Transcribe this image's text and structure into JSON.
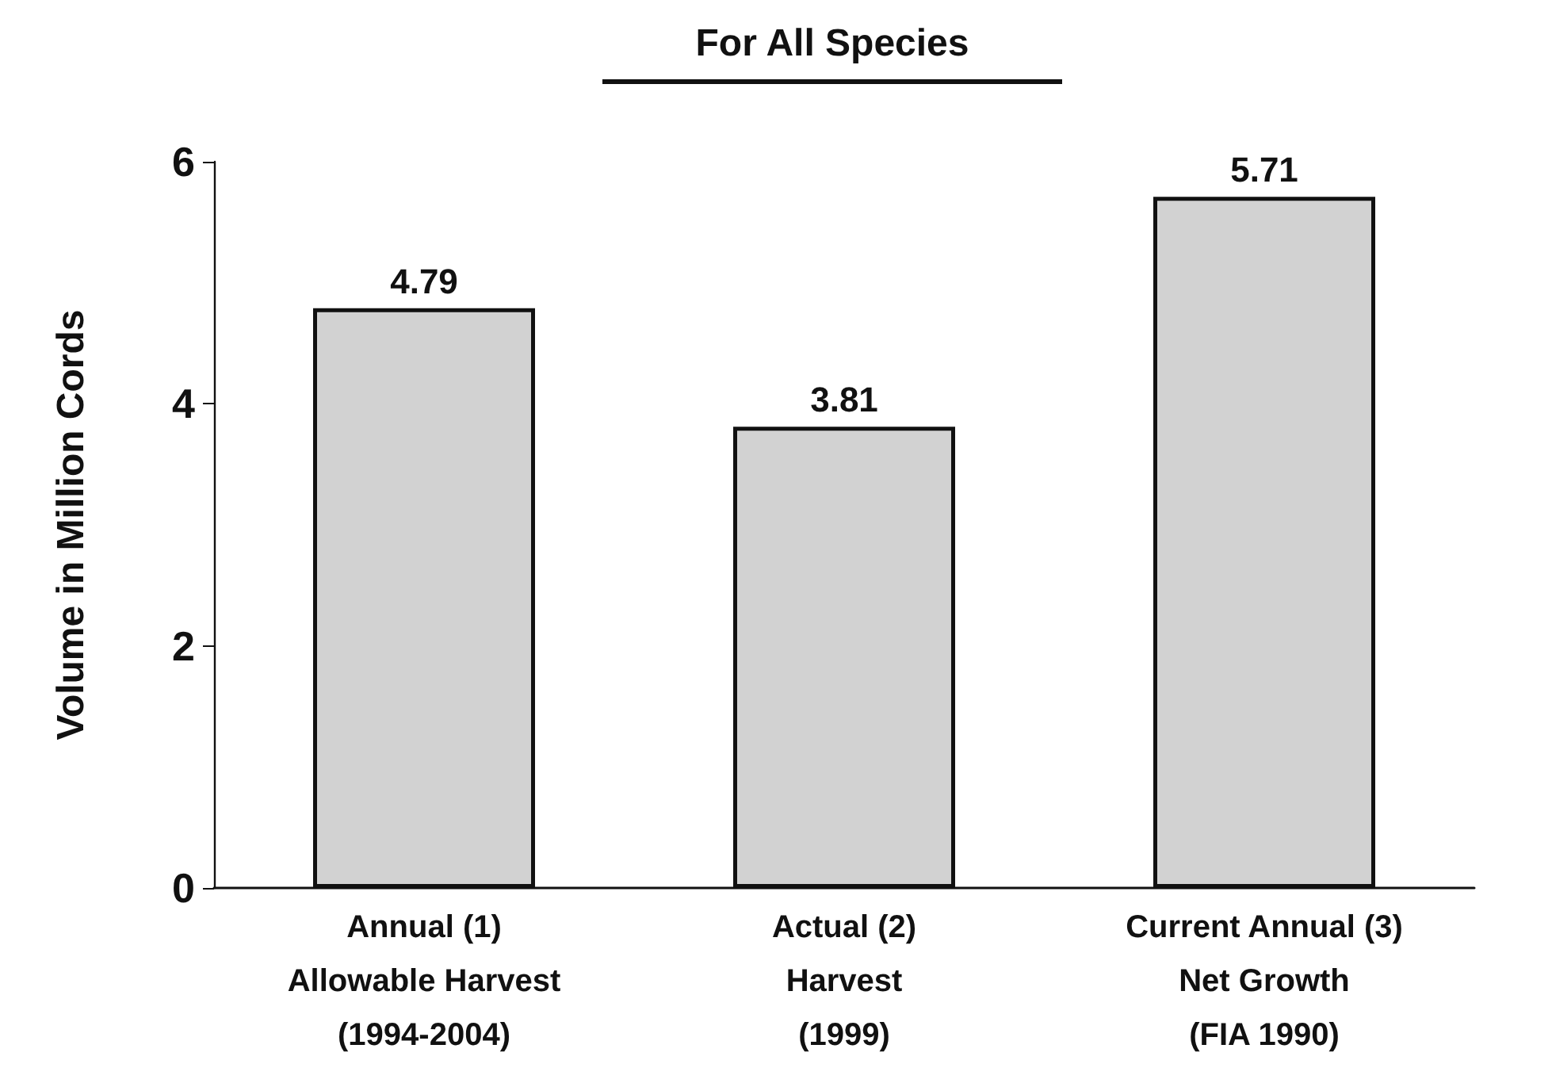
{
  "chart_data": {
    "type": "bar",
    "title": "For All Species",
    "ylabel": "Volume in Million Cords",
    "categories": [
      "Annual (1)\nAllowable Harvest\n(1994-2004)",
      "Actual (2)\nHarvest\n(1999)",
      "Current Annual (3)\nNet Growth\n(FIA 1990)"
    ],
    "values": [
      4.79,
      3.81,
      5.71
    ],
    "color": "#d2d2d2",
    "ylim": [
      0,
      6
    ],
    "yticks": [
      0,
      2,
      4,
      6
    ],
    "grid": false,
    "data_labels": true
  }
}
